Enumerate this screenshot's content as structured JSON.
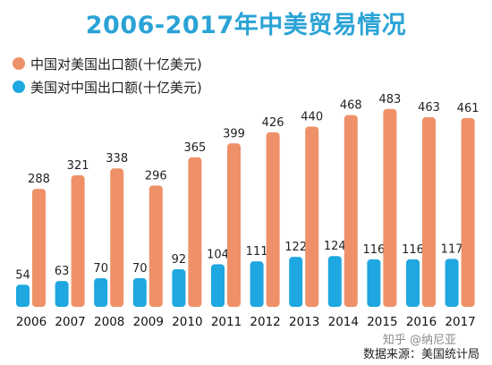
{
  "title": "2006-2017年中美贸易情况",
  "legend": [
    {
      "label": "中国对美国出口额(十亿美元)",
      "color": "#ef9168"
    },
    {
      "label": "美国对中国出口额(十亿美元)",
      "color": "#1ea7e0"
    }
  ],
  "watermark": "知乎 @纳尼亚",
  "source": "数据来源：美国统计局",
  "chart_data": {
    "type": "bar",
    "title": "2006-2017年中美贸易情况",
    "xlabel": "",
    "ylabel": "",
    "categories": [
      "2006",
      "2007",
      "2008",
      "2009",
      "2010",
      "2011",
      "2012",
      "2013",
      "2014",
      "2015",
      "2016",
      "2017"
    ],
    "series": [
      {
        "name": "中国对美国出口额(十亿美元)",
        "color": "#ef9168",
        "values": [
          288,
          321,
          338,
          296,
          365,
          399,
          426,
          440,
          468,
          483,
          463,
          461
        ]
      },
      {
        "name": "美国对中国出口额(十亿美元)",
        "color": "#1ea7e0",
        "values": [
          54,
          63,
          70,
          70,
          92,
          104,
          111,
          122,
          124,
          116,
          116,
          117
        ]
      }
    ],
    "grid": false,
    "legend_position": "top-left"
  }
}
